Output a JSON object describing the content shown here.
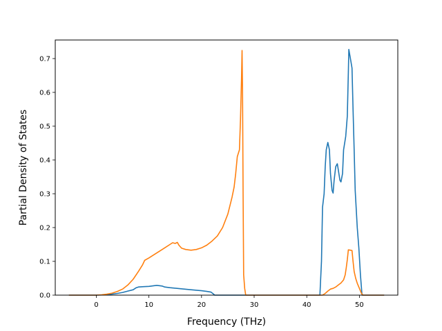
{
  "chart_data": {
    "type": "line",
    "title": "",
    "xlabel": "Frequency (THz)",
    "ylabel": "Partial Density of States",
    "xlim": [
      -7.8,
      57.3
    ],
    "ylim": [
      0,
      0.755
    ],
    "x_ticks": [
      0,
      10,
      20,
      30,
      40,
      50
    ],
    "x_tick_labels": [
      "0",
      "10",
      "20",
      "30",
      "40",
      "50"
    ],
    "y_ticks": [
      0.0,
      0.1,
      0.2,
      0.3,
      0.4,
      0.5,
      0.6,
      0.7
    ],
    "y_tick_labels": [
      "0.0",
      "0.1",
      "0.2",
      "0.3",
      "0.4",
      "0.5",
      "0.6",
      "0.7"
    ],
    "grid": false,
    "legend": "none",
    "series": [
      {
        "color": "#1f77b4",
        "points": [
          [
            -5.2,
            0
          ],
          [
            0,
            0
          ],
          [
            2,
            0.001
          ],
          [
            3,
            0.003
          ],
          [
            4,
            0.005
          ],
          [
            5,
            0.008
          ],
          [
            6,
            0.012
          ],
          [
            7,
            0.016
          ],
          [
            7.6,
            0.022
          ],
          [
            8,
            0.024
          ],
          [
            9,
            0.025
          ],
          [
            10,
            0.026
          ],
          [
            11,
            0.028
          ],
          [
            11.5,
            0.029
          ],
          [
            12.5,
            0.027
          ],
          [
            13,
            0.024
          ],
          [
            14,
            0.022
          ],
          [
            16,
            0.019
          ],
          [
            18,
            0.016
          ],
          [
            20,
            0.013
          ],
          [
            21,
            0.011
          ],
          [
            21.8,
            0.009
          ],
          [
            22.2,
            0.004
          ],
          [
            22.5,
            0
          ],
          [
            42.5,
            0
          ],
          [
            42.8,
            0.1
          ],
          [
            43,
            0.26
          ],
          [
            43.3,
            0.3
          ],
          [
            43.5,
            0.38
          ],
          [
            43.7,
            0.43
          ],
          [
            44,
            0.452
          ],
          [
            44.3,
            0.43
          ],
          [
            44.5,
            0.36
          ],
          [
            44.8,
            0.31
          ],
          [
            45,
            0.302
          ],
          [
            45.2,
            0.34
          ],
          [
            45.5,
            0.38
          ],
          [
            45.8,
            0.389
          ],
          [
            46,
            0.37
          ],
          [
            46.3,
            0.34
          ],
          [
            46.5,
            0.335
          ],
          [
            46.8,
            0.36
          ],
          [
            47,
            0.43
          ],
          [
            47.4,
            0.47
          ],
          [
            47.7,
            0.53
          ],
          [
            47.9,
            0.66
          ],
          [
            48,
            0.727
          ],
          [
            48.3,
            0.7
          ],
          [
            48.6,
            0.672
          ],
          [
            48.8,
            0.55
          ],
          [
            49,
            0.43
          ],
          [
            49.2,
            0.31
          ],
          [
            49.6,
            0.2
          ],
          [
            49.9,
            0.14
          ],
          [
            50.2,
            0.06
          ],
          [
            50.5,
            0
          ],
          [
            54.7,
            0
          ]
        ]
      },
      {
        "color": "#ff7f0e",
        "points": [
          [
            -5.2,
            0
          ],
          [
            0,
            0
          ],
          [
            1,
            0.001
          ],
          [
            2,
            0.003
          ],
          [
            3,
            0.006
          ],
          [
            4,
            0.011
          ],
          [
            5,
            0.018
          ],
          [
            6,
            0.03
          ],
          [
            7,
            0.047
          ],
          [
            8,
            0.07
          ],
          [
            8.8,
            0.09
          ],
          [
            9.2,
            0.103
          ],
          [
            10,
            0.11
          ],
          [
            11,
            0.12
          ],
          [
            12,
            0.13
          ],
          [
            13,
            0.14
          ],
          [
            14,
            0.15
          ],
          [
            14.5,
            0.155
          ],
          [
            15,
            0.153
          ],
          [
            15.4,
            0.156
          ],
          [
            15.7,
            0.148
          ],
          [
            16.2,
            0.139
          ],
          [
            17,
            0.135
          ],
          [
            18,
            0.133
          ],
          [
            19,
            0.135
          ],
          [
            20,
            0.14
          ],
          [
            21,
            0.148
          ],
          [
            22,
            0.16
          ],
          [
            23,
            0.175
          ],
          [
            24,
            0.2
          ],
          [
            25,
            0.24
          ],
          [
            25.8,
            0.29
          ],
          [
            26.2,
            0.32
          ],
          [
            26.5,
            0.36
          ],
          [
            26.8,
            0.41
          ],
          [
            27.2,
            0.43
          ],
          [
            27.4,
            0.52
          ],
          [
            27.6,
            0.64
          ],
          [
            27.7,
            0.724
          ],
          [
            27.8,
            0.6
          ],
          [
            27.9,
            0.3
          ],
          [
            28,
            0.06
          ],
          [
            28.2,
            0.02
          ],
          [
            28.4,
            0
          ],
          [
            43,
            0
          ],
          [
            43.5,
            0.005
          ],
          [
            44,
            0.012
          ],
          [
            44.5,
            0.018
          ],
          [
            45,
            0.02
          ],
          [
            45.5,
            0.024
          ],
          [
            46,
            0.03
          ],
          [
            46.5,
            0.036
          ],
          [
            47,
            0.045
          ],
          [
            47.3,
            0.06
          ],
          [
            47.5,
            0.08
          ],
          [
            47.7,
            0.105
          ],
          [
            47.9,
            0.134
          ],
          [
            48.3,
            0.133
          ],
          [
            48.6,
            0.132
          ],
          [
            48.8,
            0.1
          ],
          [
            49,
            0.07
          ],
          [
            49.3,
            0.05
          ],
          [
            49.6,
            0.035
          ],
          [
            50,
            0.02
          ],
          [
            50.4,
            0.005
          ],
          [
            50.7,
            0
          ],
          [
            54.7,
            0
          ]
        ]
      }
    ]
  }
}
